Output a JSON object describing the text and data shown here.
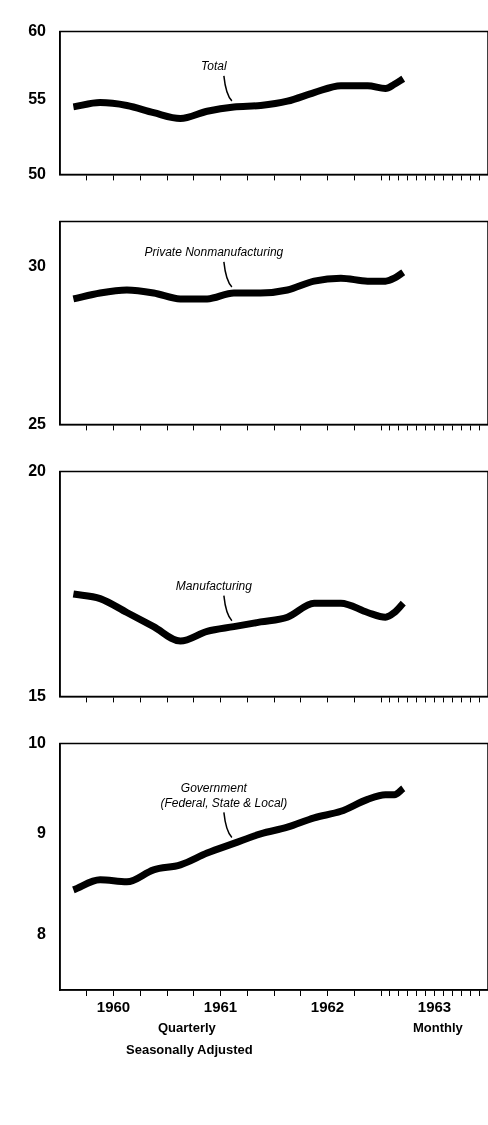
{
  "chart_data": [
    {
      "type": "line",
      "x": [
        1960.125,
        1960.375,
        1960.625,
        1960.875,
        1961.125,
        1961.375,
        1961.625,
        1961.875,
        1962.125,
        1962.375,
        1962.625,
        1962.875,
        1963.042,
        1963.125,
        1963.208
      ],
      "series": [
        {
          "name": "Total",
          "color": "#000000",
          "values": [
            54.5,
            54.8,
            54.6,
            54.1,
            53.7,
            54.2,
            54.5,
            54.6,
            54.9,
            55.5,
            56.0,
            56.0,
            55.8,
            56.1,
            56.5
          ]
        }
      ],
      "log": true,
      "ylim": [
        50,
        60
      ],
      "yticks": [
        50,
        55,
        60
      ],
      "xlim": [
        1960,
        1964
      ],
      "xticks": [
        {
          "value": 1960.25,
          "label": null
        },
        {
          "value": 1960.5,
          "label": null
        },
        {
          "value": 1960.75,
          "label": null
        },
        {
          "value": 1961,
          "label": null
        },
        {
          "value": 1961.25,
          "label": null
        },
        {
          "value": 1961.5,
          "label": null
        },
        {
          "value": 1961.75,
          "label": null
        },
        {
          "value": 1962,
          "label": null
        },
        {
          "value": 1962.25,
          "label": null
        },
        {
          "value": 1962.5,
          "label": null
        },
        {
          "value": 1962.75,
          "label": null
        },
        {
          "value": 1963,
          "label": null
        },
        {
          "value": 1963.083,
          "label": null
        },
        {
          "value": 1963.167,
          "label": null
        },
        {
          "value": 1963.25,
          "label": null
        },
        {
          "value": 1963.333,
          "label": null
        },
        {
          "value": 1963.417,
          "label": null
        },
        {
          "value": 1963.5,
          "label": null
        },
        {
          "value": 1963.583,
          "label": null
        },
        {
          "value": 1963.667,
          "label": null
        },
        {
          "value": 1963.75,
          "label": null
        },
        {
          "value": 1963.833,
          "label": null
        },
        {
          "value": 1963.917,
          "label": null
        }
      ],
      "tick_labels": "y",
      "marker": "none",
      "line_style": "solid"
    },
    {
      "type": "line",
      "x": [
        1960.125,
        1960.375,
        1960.625,
        1960.875,
        1961.125,
        1961.375,
        1961.625,
        1961.875,
        1962.125,
        1962.375,
        1962.625,
        1962.875,
        1963.042,
        1963.125,
        1963.208
      ],
      "series": [
        {
          "name": "Private Nonmanufacturing",
          "color": "#000000",
          "values": [
            28.9,
            29.1,
            29.2,
            29.1,
            28.9,
            28.9,
            29.1,
            29.1,
            29.2,
            29.5,
            29.6,
            29.5,
            29.5,
            29.6,
            29.8
          ]
        }
      ],
      "log": true,
      "ylim": [
        25,
        31.6
      ],
      "yticks": [
        25,
        30
      ],
      "xlim": [
        1960,
        1964
      ],
      "xticks": [
        {
          "value": 1960.25,
          "label": null
        },
        {
          "value": 1960.5,
          "label": null
        },
        {
          "value": 1960.75,
          "label": null
        },
        {
          "value": 1961,
          "label": null
        },
        {
          "value": 1961.25,
          "label": null
        },
        {
          "value": 1961.5,
          "label": null
        },
        {
          "value": 1961.75,
          "label": null
        },
        {
          "value": 1962,
          "label": null
        },
        {
          "value": 1962.25,
          "label": null
        },
        {
          "value": 1962.5,
          "label": null
        },
        {
          "value": 1962.75,
          "label": null
        },
        {
          "value": 1963,
          "label": null
        },
        {
          "value": 1963.083,
          "label": null
        },
        {
          "value": 1963.167,
          "label": null
        },
        {
          "value": 1963.25,
          "label": null
        },
        {
          "value": 1963.333,
          "label": null
        },
        {
          "value": 1963.417,
          "label": null
        },
        {
          "value": 1963.5,
          "label": null
        },
        {
          "value": 1963.583,
          "label": null
        },
        {
          "value": 1963.667,
          "label": null
        },
        {
          "value": 1963.75,
          "label": null
        },
        {
          "value": 1963.833,
          "label": null
        },
        {
          "value": 1963.917,
          "label": null
        }
      ],
      "tick_labels": "y",
      "marker": "none",
      "line_style": "solid"
    },
    {
      "type": "line",
      "x": [
        1960.125,
        1960.375,
        1960.625,
        1960.875,
        1961.125,
        1961.375,
        1961.625,
        1961.875,
        1962.125,
        1962.375,
        1962.625,
        1962.875,
        1963.042,
        1963.125,
        1963.208
      ],
      "series": [
        {
          "name": "Manufacturing",
          "color": "#000000",
          "values": [
            17.1,
            17.0,
            16.7,
            16.4,
            16.1,
            16.3,
            16.4,
            16.5,
            16.6,
            16.9,
            16.9,
            16.7,
            16.6,
            16.7,
            16.9
          ]
        }
      ],
      "log": true,
      "ylim": [
        15,
        20
      ],
      "yticks": [
        15,
        20
      ],
      "xlim": [
        1960,
        1964
      ],
      "xticks": [
        {
          "value": 1960.25,
          "label": null
        },
        {
          "value": 1960.5,
          "label": null
        },
        {
          "value": 1960.75,
          "label": null
        },
        {
          "value": 1961,
          "label": null
        },
        {
          "value": 1961.25,
          "label": null
        },
        {
          "value": 1961.5,
          "label": null
        },
        {
          "value": 1961.75,
          "label": null
        },
        {
          "value": 1962,
          "label": null
        },
        {
          "value": 1962.25,
          "label": null
        },
        {
          "value": 1962.5,
          "label": null
        },
        {
          "value": 1962.75,
          "label": null
        },
        {
          "value": 1963,
          "label": null
        },
        {
          "value": 1963.083,
          "label": null
        },
        {
          "value": 1963.167,
          "label": null
        },
        {
          "value": 1963.25,
          "label": null
        },
        {
          "value": 1963.333,
          "label": null
        },
        {
          "value": 1963.417,
          "label": null
        },
        {
          "value": 1963.5,
          "label": null
        },
        {
          "value": 1963.583,
          "label": null
        },
        {
          "value": 1963.667,
          "label": null
        },
        {
          "value": 1963.75,
          "label": null
        },
        {
          "value": 1963.833,
          "label": null
        },
        {
          "value": 1963.917,
          "label": null
        }
      ],
      "tick_labels": "y",
      "marker": "none",
      "line_style": "solid"
    },
    {
      "type": "line",
      "x": [
        1960.125,
        1960.375,
        1960.625,
        1960.875,
        1961.125,
        1961.375,
        1961.625,
        1961.875,
        1962.125,
        1962.375,
        1962.625,
        1962.875,
        1963.042,
        1963.125,
        1963.208
      ],
      "series": [
        {
          "name": "Government\n(Federal, State & Local)",
          "color": "#000000",
          "values": [
            8.43,
            8.53,
            8.51,
            8.63,
            8.68,
            8.8,
            8.9,
            9.0,
            9.07,
            9.17,
            9.24,
            9.37,
            9.42,
            9.42,
            9.49
          ]
        }
      ],
      "log": true,
      "ylim": [
        7.5,
        10
      ],
      "yticks": [
        8,
        9,
        10
      ],
      "xlim": [
        1960,
        1964
      ],
      "xticks": [
        {
          "value": 1960.25,
          "label": null
        },
        {
          "value": 1960.5,
          "label": "1960"
        },
        {
          "value": 1960.75,
          "label": null
        },
        {
          "value": 1961,
          "label": null
        },
        {
          "value": 1961.25,
          "label": null
        },
        {
          "value": 1961.5,
          "label": "1961"
        },
        {
          "value": 1961.75,
          "label": null
        },
        {
          "value": 1962,
          "label": null
        },
        {
          "value": 1962.25,
          "label": null
        },
        {
          "value": 1962.5,
          "label": "1962"
        },
        {
          "value": 1962.75,
          "label": null
        },
        {
          "value": 1963,
          "label": null
        },
        {
          "value": 1963.083,
          "label": null
        },
        {
          "value": 1963.167,
          "label": null
        },
        {
          "value": 1963.25,
          "label": null
        },
        {
          "value": 1963.333,
          "label": null
        },
        {
          "value": 1963.417,
          "label": null
        },
        {
          "value": 1963.5,
          "label": "1963"
        },
        {
          "value": 1963.583,
          "label": null
        },
        {
          "value": 1963.667,
          "label": null
        },
        {
          "value": 1963.75,
          "label": null
        },
        {
          "value": 1963.833,
          "label": null
        },
        {
          "value": 1963.917,
          "label": null
        }
      ],
      "marker": "none",
      "line_style": "solid",
      "annotations": [
        "Quarterly",
        "Monthly",
        "Seasonally Adjusted"
      ]
    }
  ]
}
